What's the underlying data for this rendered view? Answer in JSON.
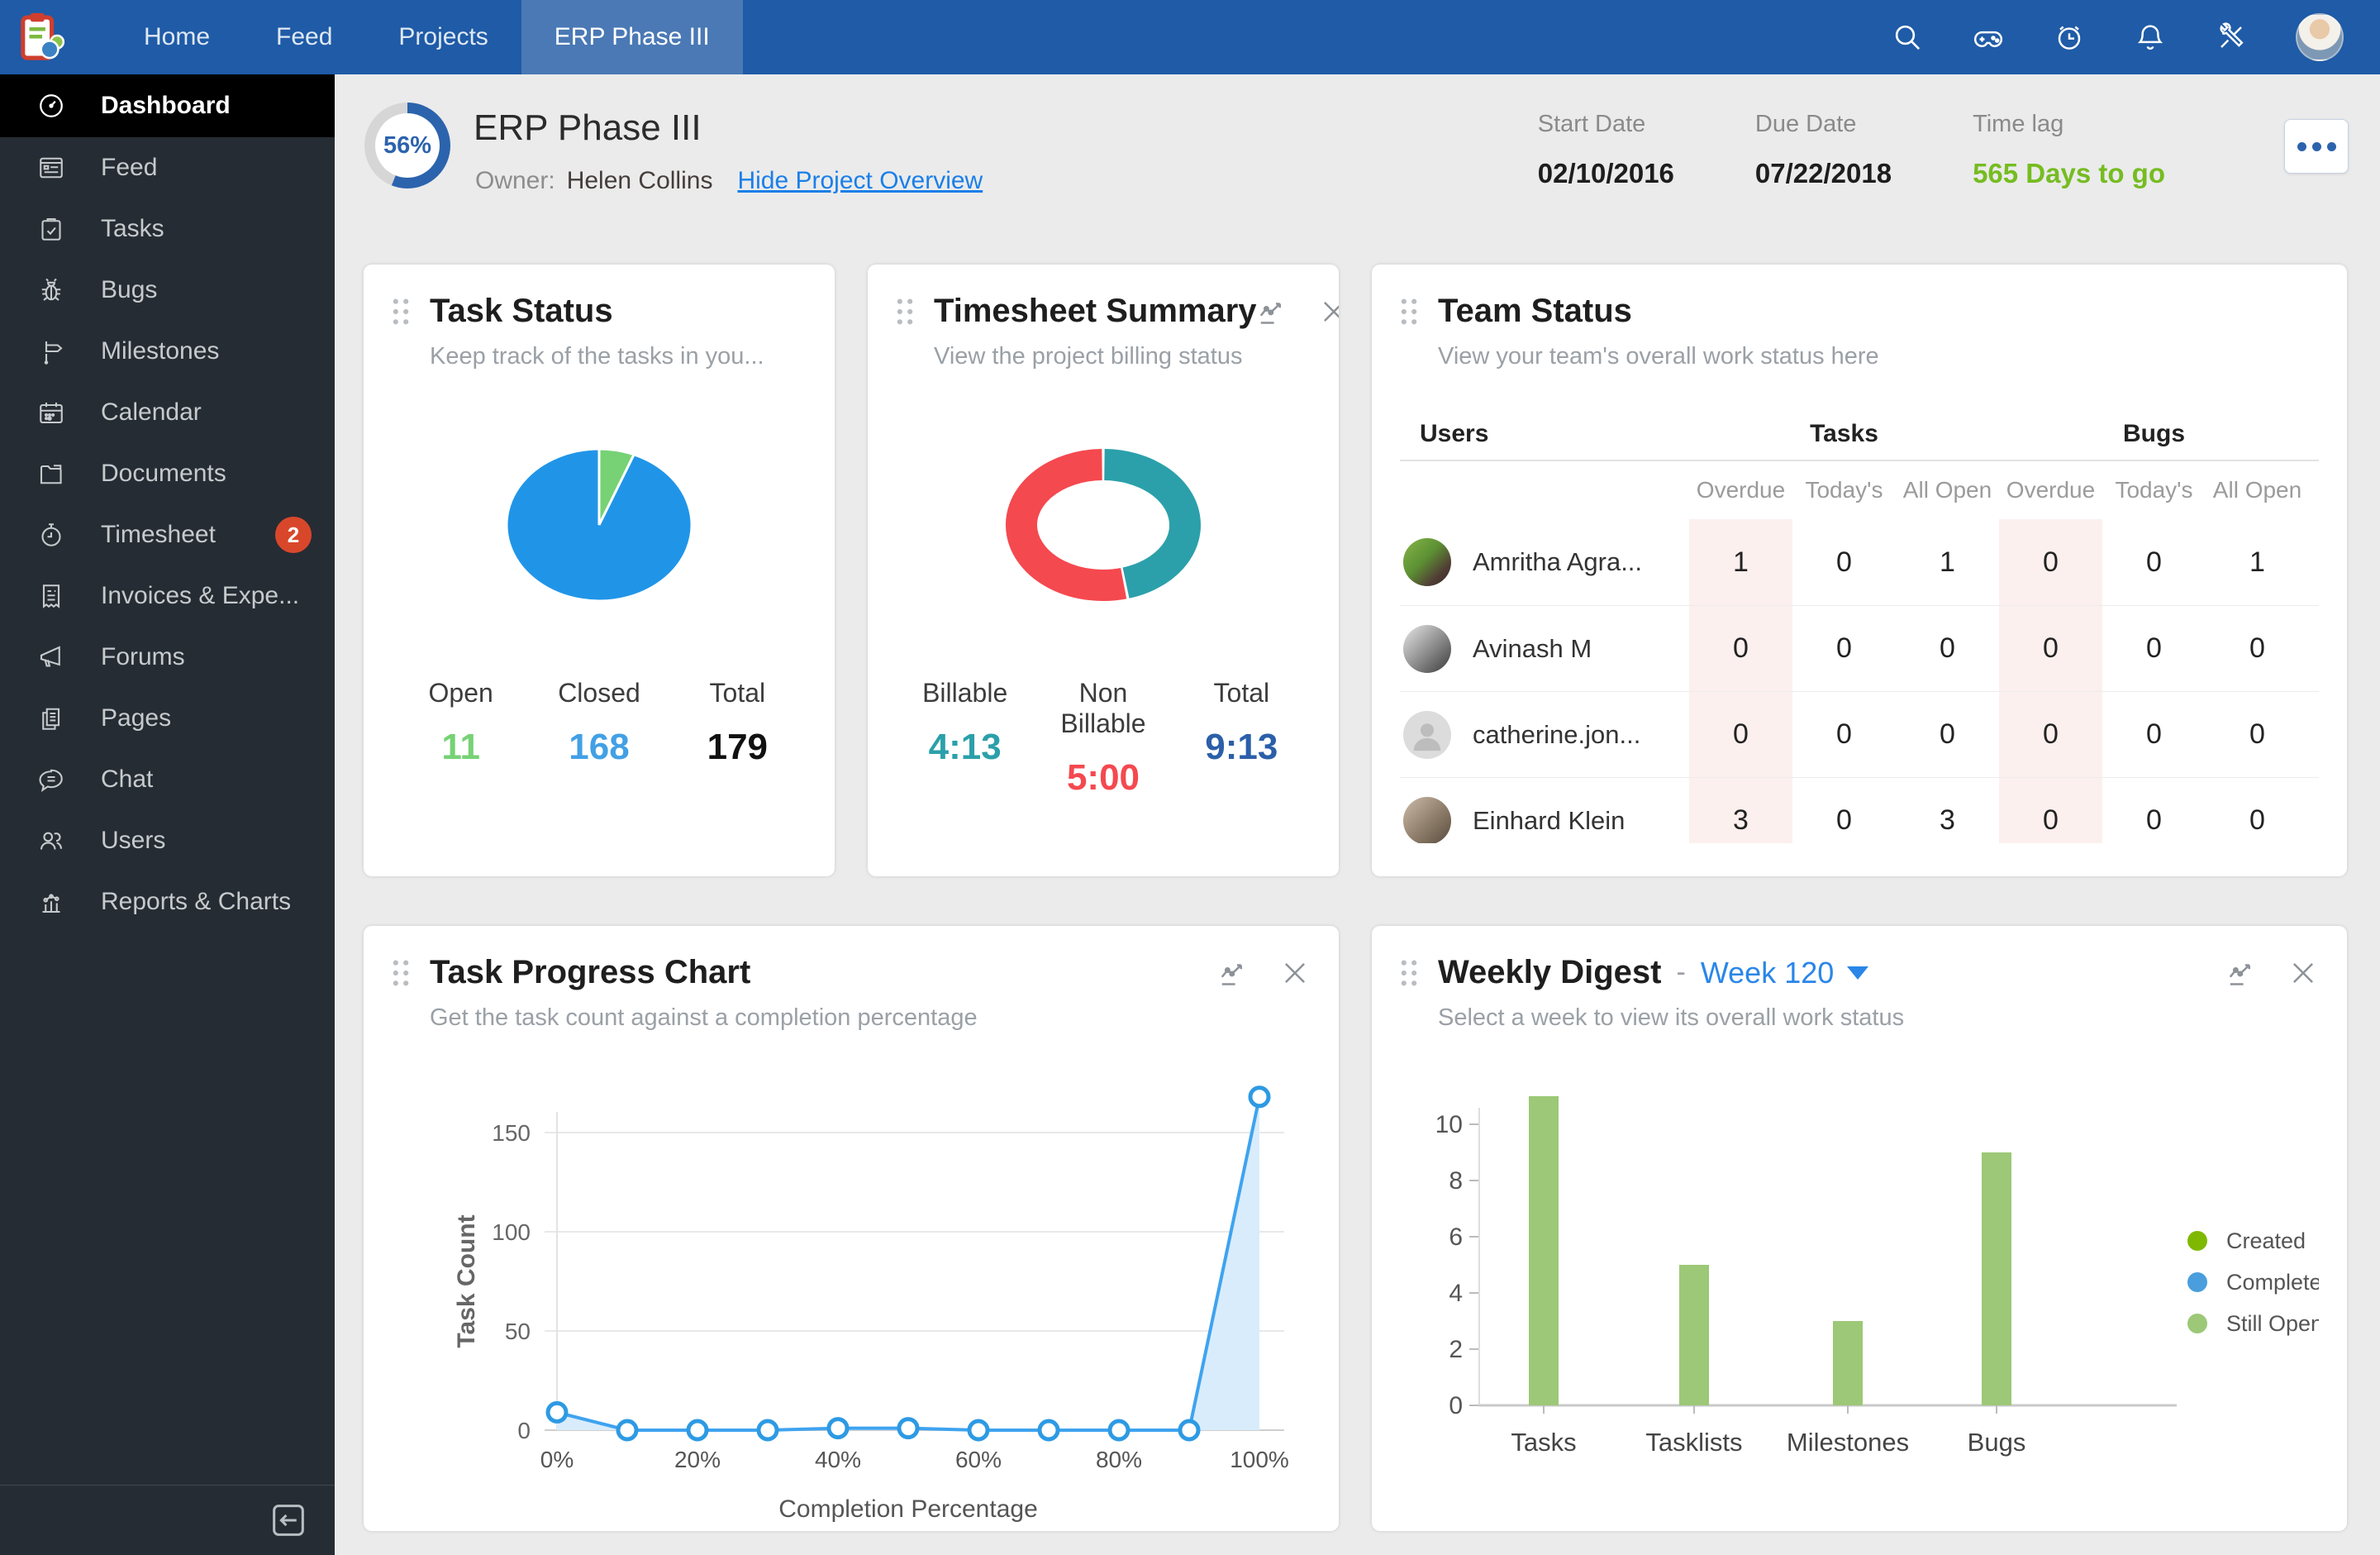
{
  "theme": {
    "nav_blue": "#1f5ba7",
    "nav_active": "#4a79b5",
    "sidebar_bg": "#262c33",
    "sidebar_active": "#000000",
    "badge_red": "#d9472b",
    "page_bg": "#ebebeb",
    "link_blue": "#1a7fe8",
    "green_days": "#76bc21",
    "open_green": "#76d275",
    "closed_blue": "#42a0e5",
    "billable_teal": "#2ba0aa",
    "nonbillable_red": "#f4494f",
    "total_navy": "#2b5fa9",
    "overdue_pink": "#fcf0ee",
    "ring_blue": "#2c63ad"
  },
  "nav": {
    "items": [
      {
        "label": "Home"
      },
      {
        "label": "Feed"
      },
      {
        "label": "Projects"
      },
      {
        "label": "ERP Phase III"
      }
    ],
    "active": "ERP Phase III",
    "icons": [
      "search-icon",
      "games-icon",
      "alarm-clock-icon",
      "notifications-bell-icon",
      "tools-icon",
      "user-avatar"
    ]
  },
  "sidebar": {
    "items": [
      {
        "label": "Dashboard",
        "icon": "dashboard-icon",
        "active": true
      },
      {
        "label": "Feed",
        "icon": "feed-icon"
      },
      {
        "label": "Tasks",
        "icon": "tasks-icon"
      },
      {
        "label": "Bugs",
        "icon": "bugs-icon"
      },
      {
        "label": "Milestones",
        "icon": "milestones-icon"
      },
      {
        "label": "Calendar",
        "icon": "calendar-icon"
      },
      {
        "label": "Documents",
        "icon": "documents-icon"
      },
      {
        "label": "Timesheet",
        "icon": "timesheet-icon",
        "badge": "2"
      },
      {
        "label": "Invoices & Expe...",
        "icon": "invoices-icon"
      },
      {
        "label": "Forums",
        "icon": "forums-icon"
      },
      {
        "label": "Pages",
        "icon": "pages-icon"
      },
      {
        "label": "Chat",
        "icon": "chat-icon"
      },
      {
        "label": "Users",
        "icon": "users-icon"
      },
      {
        "label": "Reports & Charts",
        "icon": "reports-icon"
      }
    ]
  },
  "project": {
    "progress": "56%",
    "title": "ERP Phase III",
    "owner_label": "Owner:",
    "owner": "Helen Collins",
    "hide_link": "Hide Project Overview",
    "start_date_label": "Start Date",
    "start_date": "02/10/2016",
    "due_date_label": "Due Date",
    "due_date": "07/22/2018",
    "time_lag_label": "Time lag",
    "time_lag": "565 Days to go"
  },
  "widgets": {
    "task_status": {
      "title": "Task Status",
      "subtitle": "Keep track of the tasks in you...",
      "stats": [
        {
          "label": "Open",
          "value": "11"
        },
        {
          "label": "Closed",
          "value": "168"
        },
        {
          "label": "Total",
          "value": "179"
        }
      ]
    },
    "timesheet": {
      "title": "Timesheet Summary",
      "subtitle": "View the project billing status",
      "stats": [
        {
          "label": "Billable",
          "value": "4:13"
        },
        {
          "label": "Non Billable",
          "value": "5:00"
        },
        {
          "label": "Total",
          "value": "9:13"
        }
      ]
    },
    "team_status": {
      "title": "Team Status",
      "subtitle": "View your team's overall work status here",
      "groups": [
        "Users",
        "Tasks",
        "Bugs"
      ],
      "subheaders": [
        "Overdue",
        "Today's",
        "All Open",
        "Overdue",
        "Today's",
        "All Open"
      ],
      "rows": [
        {
          "name": "Amritha Agra...",
          "values": [
            "1",
            "0",
            "1",
            "0",
            "0",
            "1"
          ]
        },
        {
          "name": "Avinash M",
          "values": [
            "0",
            "0",
            "0",
            "0",
            "0",
            "0"
          ]
        },
        {
          "name": "catherine.jon...",
          "values": [
            "0",
            "0",
            "0",
            "0",
            "0",
            "0"
          ]
        },
        {
          "name": "Einhard Klein",
          "values": [
            "3",
            "0",
            "3",
            "0",
            "0",
            "0"
          ]
        }
      ]
    },
    "task_progress": {
      "title": "Task Progress Chart",
      "subtitle": "Get the task count against a completion percentage"
    },
    "weekly_digest": {
      "title": "Weekly Digest",
      "separator": "-",
      "week": "Week 120",
      "subtitle": "Select a week to view its overall work status"
    }
  },
  "chart_data": [
    {
      "id": "task-status-pie",
      "type": "pie",
      "labels": [
        "Open",
        "Closed"
      ],
      "values": [
        11,
        168
      ],
      "colors": [
        "#76d275",
        "#2095e8"
      ],
      "title": "Task Status",
      "total": 179,
      "legend_position": "none"
    },
    {
      "id": "timesheet-donut",
      "type": "pie",
      "donut": true,
      "labels": [
        "Billable",
        "Non Billable"
      ],
      "values": [
        253,
        300
      ],
      "unit": "minutes",
      "display_values": [
        "4:13",
        "5:00"
      ],
      "total_display": "9:13",
      "colors": [
        "#2ba0aa",
        "#f4494f"
      ],
      "title": "Timesheet Summary",
      "legend_position": "none"
    },
    {
      "id": "task-progress-line",
      "type": "area",
      "x": [
        "0%",
        "10%",
        "20%",
        "30%",
        "40%",
        "50%",
        "60%",
        "70%",
        "80%",
        "90%",
        "100%"
      ],
      "values": [
        9,
        0,
        0,
        0,
        1,
        1,
        0,
        0,
        0,
        0,
        168
      ],
      "xlabel": "Completion Percentage",
      "ylabel": "Task Count",
      "yticks": [
        0,
        50,
        100,
        150
      ],
      "ylim": [
        0,
        175
      ],
      "grid": true,
      "line_color": "#3fa3ef",
      "fill_color": "#d9ecfb",
      "point_stroke": "#2d9ae3"
    },
    {
      "id": "weekly-digest-bar",
      "type": "bar",
      "categories": [
        "Tasks",
        "Tasklists",
        "Milestones",
        "Bugs"
      ],
      "values": [
        11,
        5,
        3,
        9
      ],
      "yticks": [
        0,
        2,
        4,
        6,
        8,
        10
      ],
      "ylim": [
        0,
        11.5
      ],
      "grid": false,
      "bar_color": "#9cc877",
      "legend_position": "right",
      "legend": [
        {
          "label": "Created",
          "color": "#7fb800"
        },
        {
          "label": "Completed",
          "color": "#4a9edd"
        },
        {
          "label": "Still Open",
          "color": "#9cc877"
        }
      ]
    }
  ]
}
